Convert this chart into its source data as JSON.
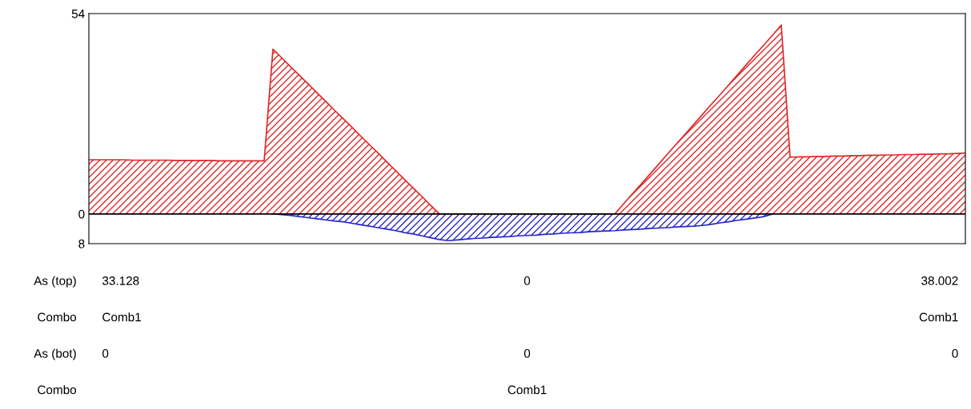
{
  "chart_data": [
    {
      "type": "area",
      "tick_labels": "y",
      "grid": false,
      "legend": false,
      "categories": [
        null,
        null,
        null,
        null,
        null,
        null,
        null,
        null,
        null,
        null,
        null,
        null,
        null,
        null,
        null,
        null,
        null,
        null,
        null,
        null,
        null,
        null,
        null,
        null,
        null,
        null,
        null,
        null,
        null,
        null,
        null,
        null,
        null,
        null,
        null,
        null,
        null,
        null,
        null,
        null,
        null,
        null,
        null,
        null,
        null,
        null,
        null,
        null,
        null,
        null,
        null,
        null,
        null,
        null,
        null,
        null,
        null,
        null,
        null,
        null,
        null,
        null,
        null,
        null,
        null,
        null,
        null,
        null,
        null,
        null,
        null,
        null,
        null,
        null,
        null,
        null,
        null,
        null,
        null,
        null,
        null,
        null,
        null,
        null,
        null,
        null,
        null,
        null,
        null,
        null,
        null,
        null,
        null,
        null,
        null,
        null,
        null,
        null,
        null,
        null,
        null
      ],
      "ylim": [
        -8,
        54
      ],
      "yticks": [
        {
          "value": -8,
          "label": "8"
        },
        0,
        54
      ],
      "ref_lines": [
        {
          "axis": "y",
          "value": 0,
          "color": "#000000"
        }
      ],
      "series": [
        {
          "color": "#e02828",
          "values": [
            14.6,
            14.6,
            14.6,
            14.6,
            14.6,
            14.5,
            14.5,
            14.5,
            14.5,
            14.5,
            14.4,
            14.4,
            14.4,
            14.4,
            14.4,
            14.3,
            14.3,
            14.3,
            14.3,
            14.3,
            14.3,
            44.4,
            42.1,
            39.7,
            37.4,
            35.1,
            32.7,
            30.4,
            28.0,
            25.7,
            23.4,
            21.0,
            18.7,
            16.4,
            14.0,
            11.7,
            9.3,
            7.0,
            4.7,
            2.3,
            0,
            0,
            0,
            0,
            0,
            0,
            0,
            0,
            0,
            0,
            0,
            0,
            0,
            0,
            0,
            0,
            0,
            0,
            0,
            0,
            0,
            2.7,
            5.4,
            8.0,
            10.7,
            13.4,
            16.1,
            18.8,
            21.4,
            24.1,
            26.8,
            29.5,
            32.1,
            34.8,
            37.5,
            40.2,
            42.9,
            45.5,
            48.2,
            50.9,
            15.3,
            15.4,
            15.4,
            15.5,
            15.5,
            15.6,
            15.6,
            15.7,
            15.7,
            15.8,
            15.8,
            15.9,
            15.9,
            16.0,
            16.0,
            16.1,
            16.1,
            16.2,
            16.2,
            16.3,
            16.4
          ]
        },
        {
          "color": "#2828c8",
          "values": [
            null,
            null,
            null,
            null,
            null,
            null,
            null,
            null,
            null,
            null,
            null,
            null,
            null,
            null,
            null,
            null,
            null,
            null,
            null,
            null,
            null,
            0,
            -0.2,
            -0.4,
            -0.7,
            -1.0,
            -1.3,
            -1.6,
            -1.9,
            -2.1,
            -2.5,
            -2.9,
            -3.3,
            -3.7,
            -4.1,
            -4.5,
            -5.0,
            -5.4,
            -5.9,
            -6.4,
            -6.9,
            -7.2,
            -7.0,
            -6.8,
            -6.6,
            -6.5,
            -6.3,
            -6.2,
            -6.1,
            -5.9,
            -5.8,
            -5.7,
            -5.5,
            -5.4,
            -5.2,
            -5.1,
            -5.0,
            -4.8,
            -4.7,
            -4.6,
            -4.5,
            -4.3,
            -4.2,
            -4.1,
            -3.9,
            -3.8,
            -3.7,
            -3.5,
            -3.4,
            -3.3,
            -3.1,
            -2.8,
            -2.4,
            -2.1,
            -1.7,
            -1.4,
            -1.1,
            -0.7,
            0,
            null,
            null,
            null,
            null,
            null,
            null,
            null,
            null,
            null,
            null,
            null,
            null,
            null,
            null,
            null,
            null,
            null,
            null,
            null,
            null,
            null,
            null
          ]
        }
      ]
    },
    {
      "type": "other",
      "y_categories": [
        "As (top)",
        "Combo",
        "As (bot)",
        "Combo"
      ],
      "categories": [
        null,
        null,
        null
      ],
      "cell_labels": [
        [
          "33.128",
          "0",
          "38.002"
        ],
        [
          "Comb1",
          null,
          "Comb1"
        ],
        [
          "0",
          "0",
          "0"
        ],
        [
          null,
          "Comb1",
          null
        ]
      ]
    }
  ]
}
